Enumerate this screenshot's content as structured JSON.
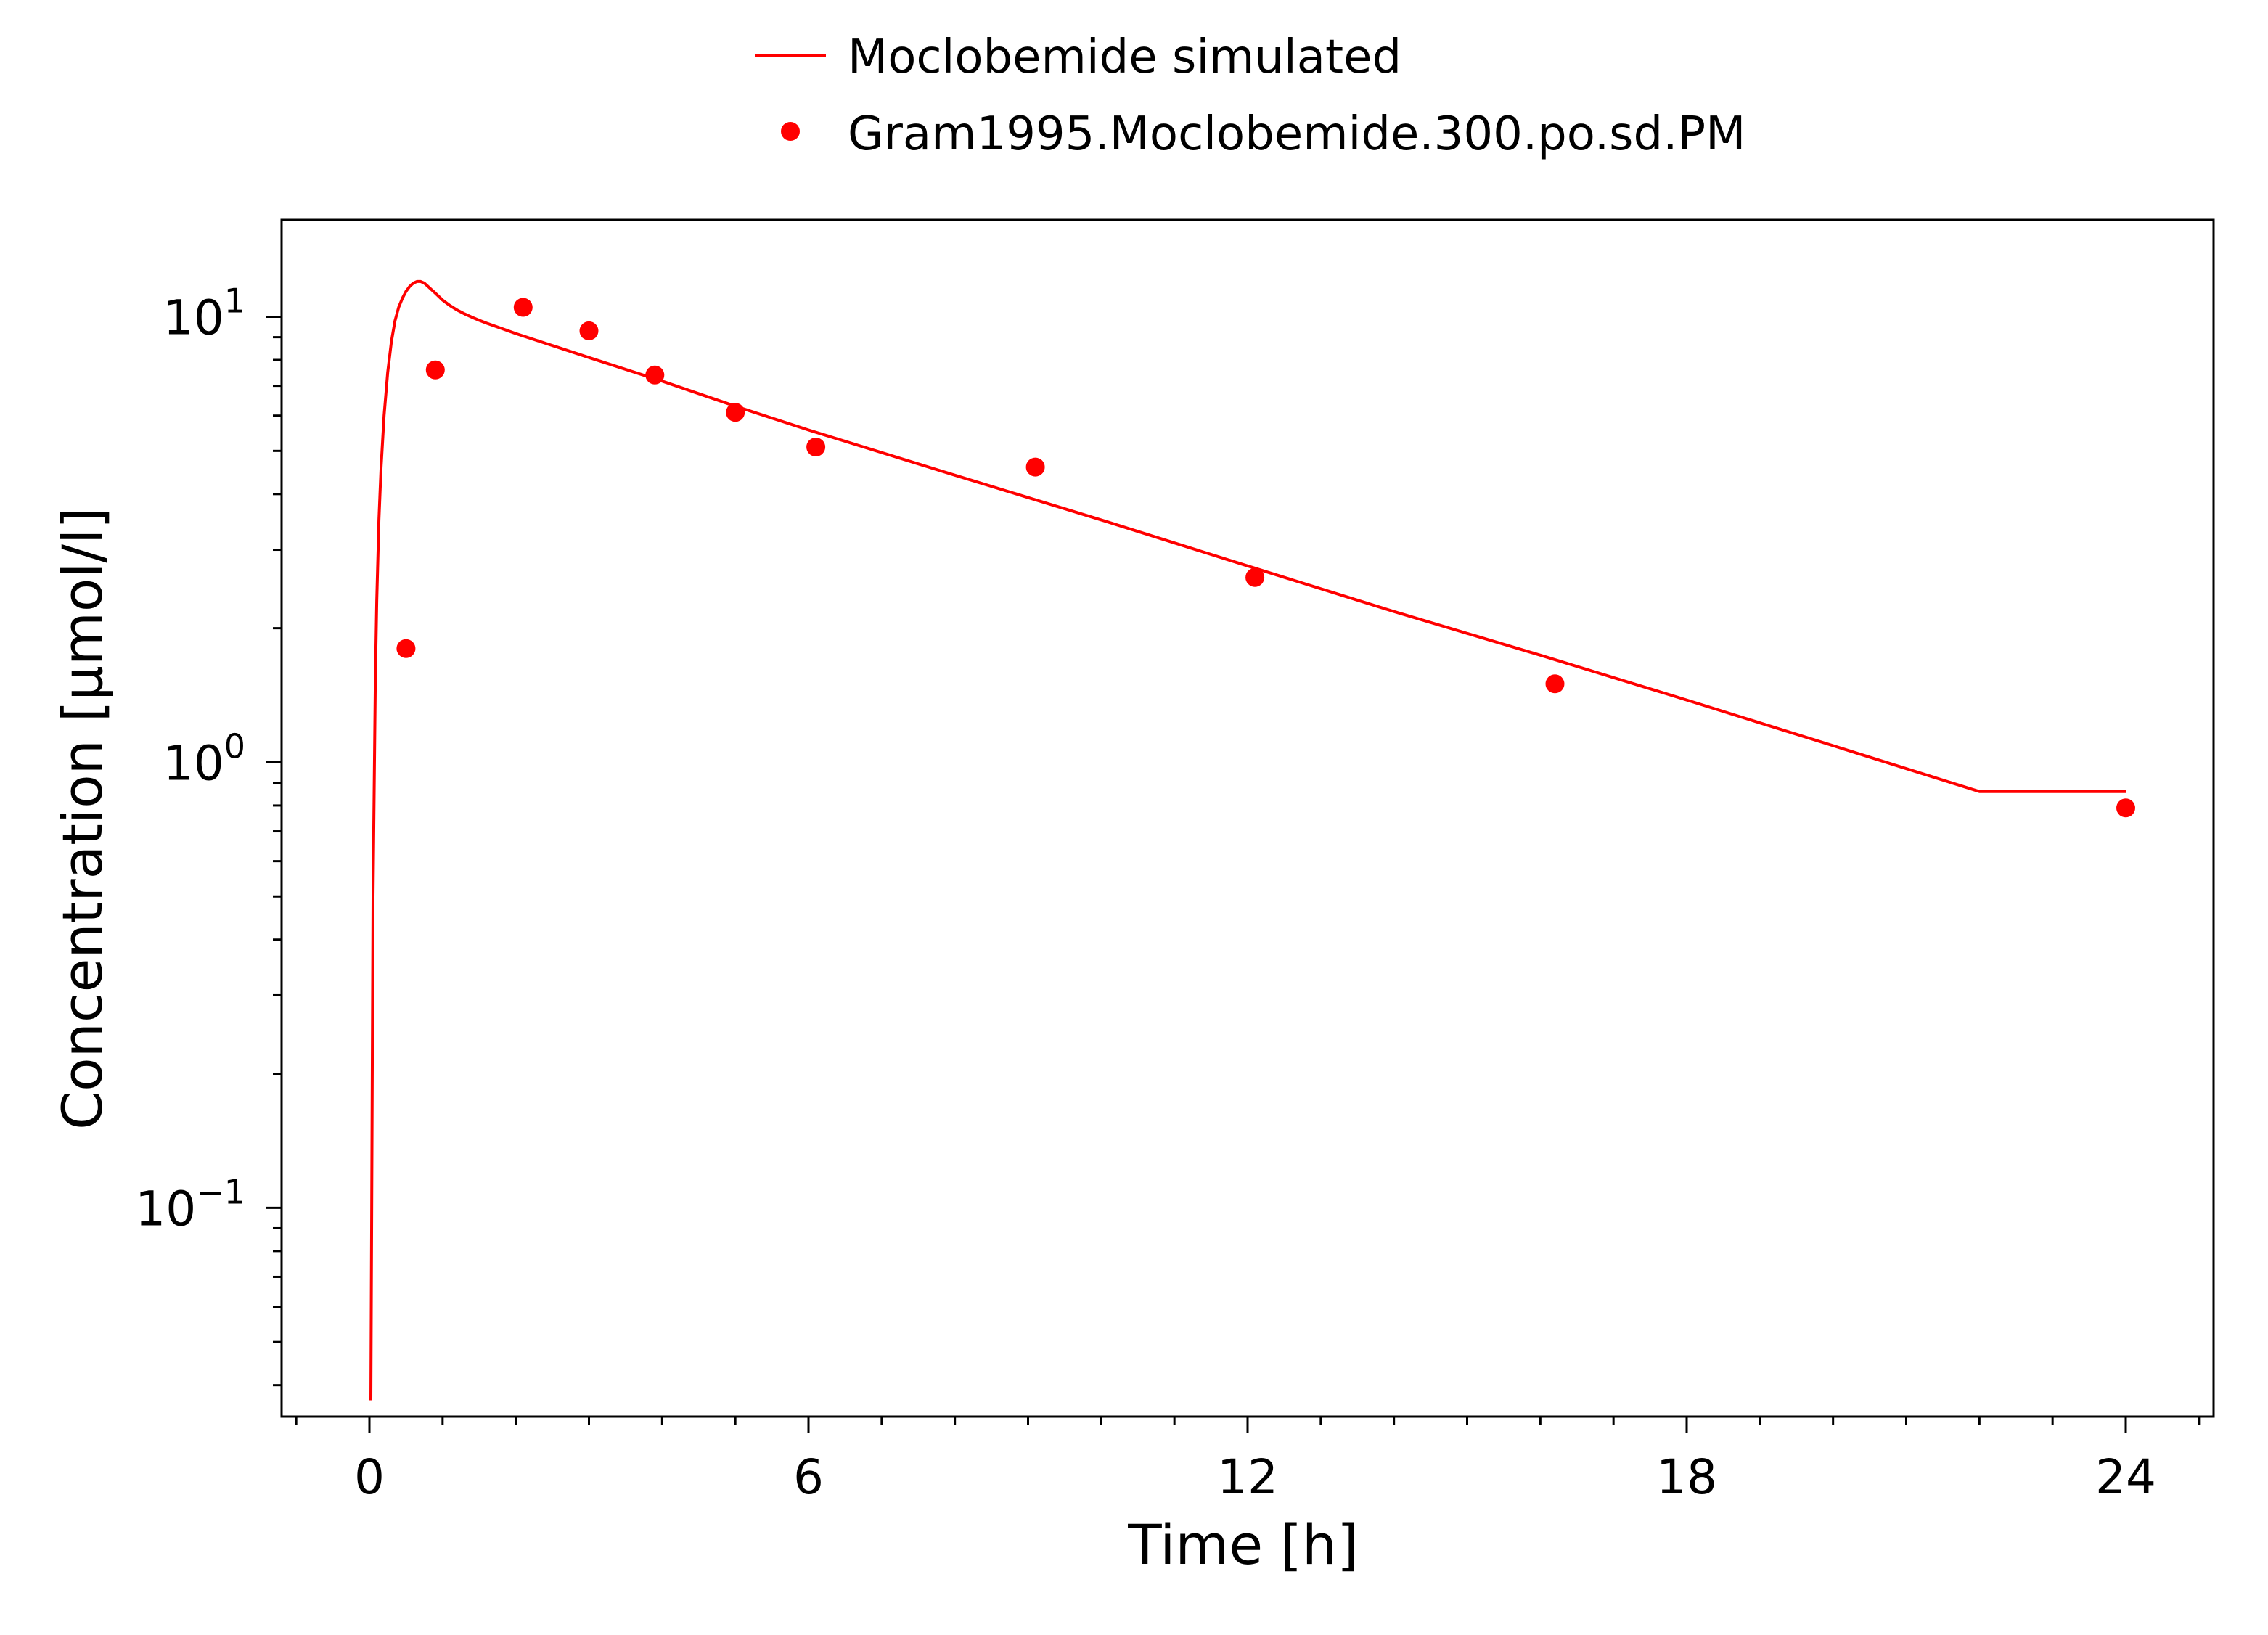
{
  "chart_data": {
    "type": "line",
    "xlabel": "Time [h]",
    "ylabel": "Concentration [µmol/l]",
    "yscale": "log",
    "xlim": [
      -1.2,
      25.2
    ],
    "ylim": [
      0.034,
      16.5
    ],
    "x_ticks": [
      0,
      6,
      12,
      18,
      24
    ],
    "x_tick_labels": [
      "0",
      "6",
      "12",
      "18",
      "24"
    ],
    "y_ticks": [
      {
        "value": 0.1,
        "base": "10",
        "exp": "−1"
      },
      {
        "value": 1,
        "base": "10",
        "exp": "0"
      },
      {
        "value": 10,
        "base": "10",
        "exp": "1"
      }
    ],
    "grid": false,
    "legend_position": "top-center",
    "colors": {
      "series": "#ff0000",
      "axis": "#000000"
    },
    "series": [
      {
        "name": "Moclobemide simulated",
        "kind": "line",
        "color": "#ff0000",
        "x": [
          0.02,
          0.05,
          0.08,
          0.1,
          0.13,
          0.16,
          0.2,
          0.25,
          0.3,
          0.35,
          0.4,
          0.45,
          0.5,
          0.55,
          0.6,
          0.65,
          0.7,
          0.75,
          0.8,
          0.85,
          0.9,
          0.95,
          1.0,
          1.1,
          1.2,
          1.3,
          1.4,
          1.5,
          1.6,
          1.8,
          2.0,
          2.5,
          3.0,
          4.0,
          5.0,
          6.0,
          8.0,
          10.0,
          12.0,
          14.0,
          16.0,
          18.0,
          20.0,
          22.0,
          24.0
        ],
        "values": [
          0.037,
          0.5,
          1.5,
          2.3,
          3.5,
          4.6,
          6.0,
          7.5,
          8.8,
          9.8,
          10.5,
          11.0,
          11.4,
          11.7,
          11.9,
          12.0,
          12.0,
          11.9,
          11.7,
          11.5,
          11.3,
          11.1,
          10.9,
          10.6,
          10.35,
          10.15,
          9.98,
          9.82,
          9.68,
          9.42,
          9.17,
          8.62,
          8.1,
          7.17,
          6.3,
          5.57,
          4.41,
          3.5,
          2.76,
          2.18,
          1.74,
          1.38,
          1.09,
          0.86,
          0.86
        ]
      },
      {
        "name": "Gram1995.Moclobemide.300.po.sd.PM",
        "kind": "scatter",
        "color": "#ff0000",
        "x": [
          0.5,
          0.9,
          2.1,
          3.0,
          3.9,
          5.0,
          6.1,
          9.1,
          12.1,
          16.2,
          24.0
        ],
        "values": [
          1.8,
          7.6,
          10.5,
          9.3,
          7.4,
          6.1,
          5.1,
          4.6,
          2.6,
          1.5,
          0.79
        ]
      }
    ]
  }
}
